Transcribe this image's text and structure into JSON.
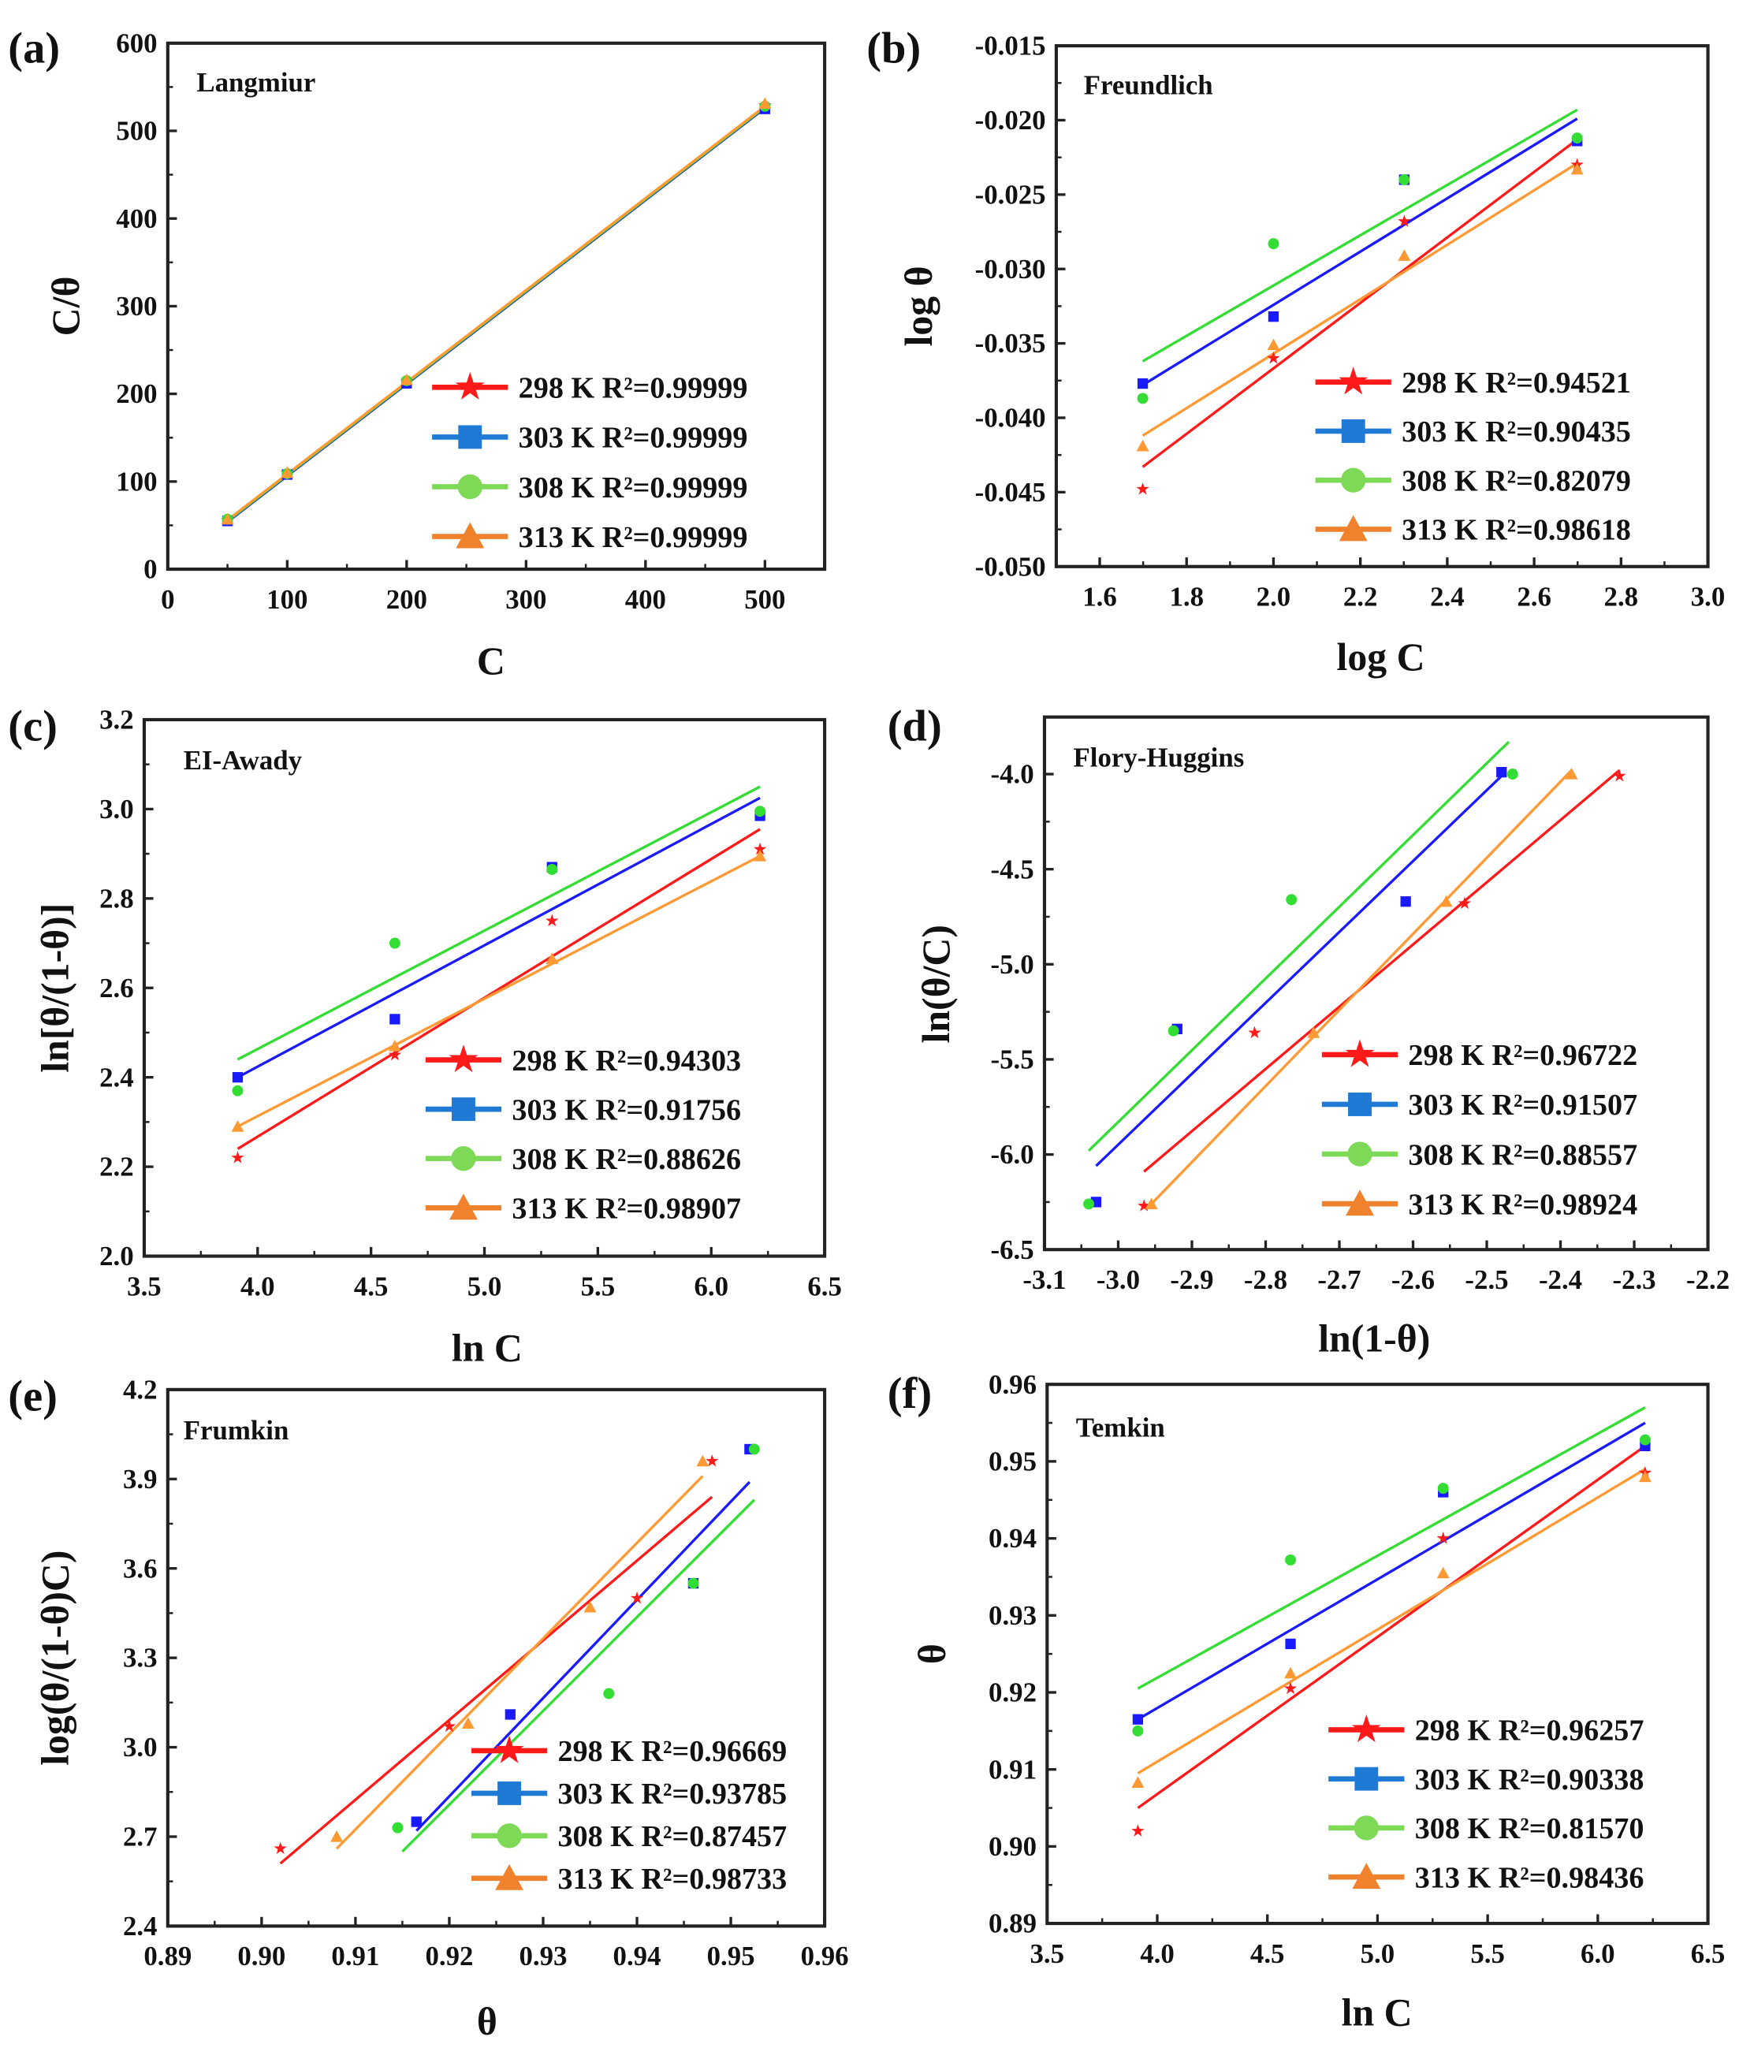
{
  "colors": {
    "298 K": "#ff1a1a",
    "303 K": "#1a1aff",
    "308 K": "#33dd33",
    "313 K": "#ff9933",
    "legend_303": "#1f7ad6"
  },
  "chart_data": [
    {
      "panel": "(a)",
      "type": "scatter",
      "title": "Langmiur",
      "xlabel": "C",
      "ylabel": "C/θ",
      "xlim": [
        0,
        550
      ],
      "ylim": [
        0,
        600
      ],
      "xticks": [
        0,
        100,
        200,
        300,
        400,
        500
      ],
      "yticks": [
        0,
        100,
        200,
        300,
        400,
        500,
        600
      ],
      "xdec": 0,
      "ydec": 0,
      "series": [
        {
          "name": "298 K",
          "marker": "star",
          "label": "298 K R²=0.99999",
          "x": [
            50,
            100,
            200,
            500
          ],
          "y": [
            56,
            110,
            214,
            529
          ],
          "fit": [
            50,
            55,
            500,
            527
          ]
        },
        {
          "name": "303 K",
          "marker": "square",
          "label": "303 K R²=0.99999",
          "x": [
            50,
            100,
            200,
            500
          ],
          "y": [
            55,
            108,
            212,
            525
          ],
          "fit": [
            50,
            54,
            500,
            526
          ]
        },
        {
          "name": "308 K",
          "marker": "circle",
          "label": "308 K R²=0.99999",
          "x": [
            50,
            100,
            200,
            500
          ],
          "y": [
            57,
            109,
            215,
            528
          ],
          "fit": [
            50,
            55,
            500,
            527
          ]
        },
        {
          "name": "313 K",
          "marker": "triangle",
          "label": "313 K R²=0.99999",
          "x": [
            50,
            100,
            200,
            500
          ],
          "y": [
            57,
            110,
            216,
            531
          ],
          "fit": [
            50,
            56,
            500,
            528
          ]
        }
      ]
    },
    {
      "panel": "(b)",
      "type": "scatter",
      "title": "Freundlich",
      "xlabel": "log C",
      "ylabel": "log θ",
      "xlim": [
        1.5,
        3.0
      ],
      "ylim": [
        -0.05,
        -0.015
      ],
      "xticks": [
        1.6,
        1.8,
        2.0,
        2.2,
        2.4,
        2.6,
        2.8,
        3.0
      ],
      "yticks": [
        -0.05,
        -0.045,
        -0.04,
        -0.035,
        -0.03,
        -0.025,
        -0.02,
        -0.015
      ],
      "xdec": 1,
      "ydec": 3,
      "series": [
        {
          "name": "298 K",
          "marker": "star",
          "label": "298 K R²=0.94521",
          "x": [
            1.699,
            2.0,
            2.301,
            2.699
          ],
          "y": [
            -0.0448,
            -0.036,
            -0.0268,
            -0.023
          ],
          "fit": [
            1.699,
            -0.0433,
            2.699,
            -0.0213
          ]
        },
        {
          "name": "303 K",
          "marker": "square",
          "label": "303 K R²=0.90435",
          "x": [
            1.699,
            2.0,
            2.301,
            2.699
          ],
          "y": [
            -0.0377,
            -0.0332,
            -0.024,
            -0.0214
          ],
          "fit": [
            1.699,
            -0.0378,
            2.699,
            -0.0199
          ]
        },
        {
          "name": "308 K",
          "marker": "circle",
          "label": "308 K R²=0.82079",
          "x": [
            1.699,
            2.0,
            2.301,
            2.699
          ],
          "y": [
            -0.0387,
            -0.0283,
            -0.024,
            -0.0212
          ],
          "fit": [
            1.699,
            -0.0362,
            2.699,
            -0.0193
          ]
        },
        {
          "name": "313 K",
          "marker": "triangle",
          "label": "313 K R²=0.98618",
          "x": [
            1.699,
            2.0,
            2.301,
            2.699
          ],
          "y": [
            -0.0419,
            -0.0351,
            -0.0291,
            -0.0233
          ],
          "fit": [
            1.699,
            -0.0412,
            2.699,
            -0.0229
          ]
        }
      ]
    },
    {
      "panel": "(c)",
      "type": "scatter",
      "title": "EI-Awady",
      "xlabel": "ln C",
      "ylabel": "ln[θ/(1-θ)]",
      "xlim": [
        3.5,
        6.5
      ],
      "ylim": [
        2.0,
        3.2
      ],
      "xticks": [
        3.5,
        4.0,
        4.5,
        5.0,
        5.5,
        6.0,
        6.5
      ],
      "yticks": [
        2.0,
        2.2,
        2.4,
        2.6,
        2.8,
        3.0,
        3.2
      ],
      "xdec": 1,
      "ydec": 1,
      "series": [
        {
          "name": "298 K",
          "marker": "star",
          "label": "298 K R²=0.94303",
          "x": [
            3.912,
            4.605,
            5.298,
            6.215
          ],
          "y": [
            2.22,
            2.45,
            2.75,
            2.91
          ],
          "fit": [
            3.912,
            2.24,
            6.215,
            2.955
          ]
        },
        {
          "name": "303 K",
          "marker": "square",
          "label": "303 K R²=0.91756",
          "x": [
            3.912,
            4.605,
            5.298,
            6.215
          ],
          "y": [
            2.4,
            2.53,
            2.87,
            2.985
          ],
          "fit": [
            3.912,
            2.4,
            6.215,
            3.025
          ]
        },
        {
          "name": "308 K",
          "marker": "circle",
          "label": "308 K R²=0.88626",
          "x": [
            3.912,
            4.605,
            5.298,
            6.215
          ],
          "y": [
            2.37,
            2.7,
            2.865,
            2.995
          ],
          "fit": [
            3.912,
            2.44,
            6.215,
            3.05
          ]
        },
        {
          "name": "313 K",
          "marker": "triangle",
          "label": "313 K R²=0.98907",
          "x": [
            3.912,
            4.605,
            5.298,
            6.215
          ],
          "y": [
            2.29,
            2.47,
            2.665,
            2.895
          ],
          "fit": [
            3.912,
            2.29,
            6.215,
            2.895
          ]
        }
      ]
    },
    {
      "panel": "(d)",
      "type": "scatter",
      "title": "Flory-Huggins",
      "xlabel": "ln(1-θ)",
      "ylabel": "ln(θ/C)",
      "xlim": [
        -3.1,
        -2.2
      ],
      "ylim": [
        -6.5,
        -3.7
      ],
      "xticks": [
        -3.1,
        -3.0,
        -2.9,
        -2.8,
        -2.7,
        -2.6,
        -2.5,
        -2.4,
        -2.3,
        -2.2
      ],
      "yticks": [
        -6.5,
        -6.0,
        -5.5,
        -5.0,
        -4.5,
        -4.0
      ],
      "xdec": 1,
      "ydec": 1,
      "series": [
        {
          "name": "298 K",
          "marker": "star",
          "label": "298 K R²=0.96722",
          "x": [
            -2.965,
            -2.815,
            -2.53,
            -2.32
          ],
          "y": [
            -6.27,
            -5.36,
            -4.68,
            -4.01
          ],
          "fit": [
            -2.965,
            -6.09,
            -2.32,
            -3.98
          ]
        },
        {
          "name": "303 K",
          "marker": "square",
          "label": "303 K R²=0.91507",
          "x": [
            -3.03,
            -2.92,
            -2.61,
            -2.48
          ],
          "y": [
            -6.25,
            -5.34,
            -4.67,
            -3.99
          ],
          "fit": [
            -3.03,
            -6.06,
            -2.48,
            -4.01
          ]
        },
        {
          "name": "308 K",
          "marker": "circle",
          "label": "308 K R²=0.88557",
          "x": [
            -3.04,
            -2.925,
            -2.765,
            -2.465
          ],
          "y": [
            -6.26,
            -5.35,
            -4.66,
            -4.0
          ],
          "fit": [
            -3.04,
            -5.98,
            -2.47,
            -3.83
          ]
        },
        {
          "name": "313 K",
          "marker": "triangle",
          "label": "313 K R²=0.98924",
          "x": [
            -2.955,
            -2.735,
            -2.555,
            -2.385
          ],
          "y": [
            -6.26,
            -5.36,
            -4.67,
            -4.0
          ],
          "fit": [
            -2.955,
            -6.26,
            -2.385,
            -3.98
          ]
        }
      ]
    },
    {
      "panel": "(e)",
      "type": "scatter",
      "title": "Frumkin",
      "xlabel": "θ",
      "ylabel": "log(θ/(1-θ)C)",
      "xlim": [
        0.89,
        0.96
      ],
      "ylim": [
        2.4,
        4.2
      ],
      "xticks": [
        0.89,
        0.9,
        0.91,
        0.92,
        0.93,
        0.94,
        0.95,
        0.96
      ],
      "yticks": [
        2.4,
        2.7,
        3.0,
        3.3,
        3.6,
        3.9,
        4.2
      ],
      "xdec": 2,
      "ydec": 1,
      "series": [
        {
          "name": "298 K",
          "marker": "star",
          "label": "298 K R²=0.96669",
          "x": [
            0.902,
            0.92,
            0.94,
            0.948
          ],
          "y": [
            2.66,
            3.07,
            3.5,
            3.96
          ],
          "fit": [
            0.902,
            2.61,
            0.948,
            3.84
          ]
        },
        {
          "name": "303 K",
          "marker": "square",
          "label": "303 K R²=0.93785",
          "x": [
            0.9165,
            0.9265,
            0.946,
            0.952
          ],
          "y": [
            2.75,
            3.11,
            3.55,
            4.0
          ],
          "fit": [
            0.9165,
            2.72,
            0.952,
            3.89
          ]
        },
        {
          "name": "308 K",
          "marker": "circle",
          "label": "308 K R²=0.87457",
          "x": [
            0.9145,
            0.937,
            0.946,
            0.9525
          ],
          "y": [
            2.73,
            3.18,
            3.55,
            4.0
          ],
          "fit": [
            0.915,
            2.65,
            0.9525,
            3.83
          ]
        },
        {
          "name": "313 K",
          "marker": "triangle",
          "label": "313 K R²=0.98733",
          "x": [
            0.908,
            0.922,
            0.935,
            0.947
          ],
          "y": [
            2.7,
            3.08,
            3.47,
            3.96
          ],
          "fit": [
            0.908,
            2.66,
            0.947,
            3.91
          ]
        }
      ]
    },
    {
      "panel": "(f)",
      "type": "scatter",
      "title": "Temkin",
      "xlabel": "ln C",
      "ylabel": "θ",
      "xlim": [
        3.5,
        6.5
      ],
      "ylim": [
        0.89,
        0.96
      ],
      "xticks": [
        3.5,
        4.0,
        4.5,
        5.0,
        5.5,
        6.0,
        6.5
      ],
      "yticks": [
        0.89,
        0.9,
        0.91,
        0.92,
        0.93,
        0.94,
        0.95,
        0.96
      ],
      "xdec": 1,
      "ydec": 2,
      "series": [
        {
          "name": "298 K",
          "marker": "star",
          "label": "298 K R²=0.96257",
          "x": [
            3.912,
            4.605,
            5.298,
            6.215
          ],
          "y": [
            0.902,
            0.9205,
            0.94,
            0.9485
          ],
          "fit": [
            3.912,
            0.905,
            6.215,
            0.952
          ]
        },
        {
          "name": "303 K",
          "marker": "square",
          "label": "303 K R²=0.90338",
          "x": [
            3.912,
            4.605,
            5.298,
            6.215
          ],
          "y": [
            0.9165,
            0.9263,
            0.946,
            0.952
          ],
          "fit": [
            3.912,
            0.9165,
            6.215,
            0.955
          ]
        },
        {
          "name": "308 K",
          "marker": "circle",
          "label": "308 K R²=0.81570",
          "x": [
            3.912,
            4.605,
            5.298,
            6.215
          ],
          "y": [
            0.915,
            0.9372,
            0.9465,
            0.9528
          ],
          "fit": [
            3.912,
            0.9205,
            6.215,
            0.957
          ]
        },
        {
          "name": "313 K",
          "marker": "triangle",
          "label": "313 K R²=0.98436",
          "x": [
            3.912,
            4.605,
            5.298,
            6.215
          ],
          "y": [
            0.9083,
            0.9225,
            0.9355,
            0.948
          ],
          "fit": [
            3.912,
            0.9095,
            6.215,
            0.949
          ]
        }
      ]
    }
  ]
}
